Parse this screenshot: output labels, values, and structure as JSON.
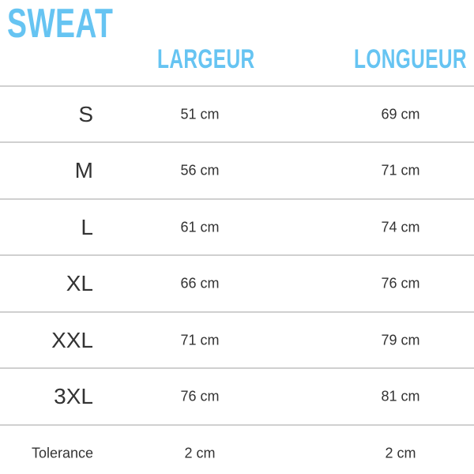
{
  "title": "SWEAT",
  "columns": [
    "LARGEUR",
    "LONGUEUR"
  ],
  "accent_color": "#66c4f2",
  "rows": [
    {
      "size": "S",
      "largeur": "51 cm",
      "longueur": "69 cm"
    },
    {
      "size": "M",
      "largeur": "56 cm",
      "longueur": "71 cm"
    },
    {
      "size": "L",
      "largeur": "61 cm",
      "longueur": "74 cm"
    },
    {
      "size": "XL",
      "largeur": "66 cm",
      "longueur": "76 cm"
    },
    {
      "size": "XXL",
      "largeur": "71 cm",
      "longueur": "79 cm"
    },
    {
      "size": "3XL",
      "largeur": "76 cm",
      "longueur": "81 cm"
    },
    {
      "size": "Tolerance",
      "largeur": "2 cm",
      "longueur": "2 cm"
    }
  ]
}
